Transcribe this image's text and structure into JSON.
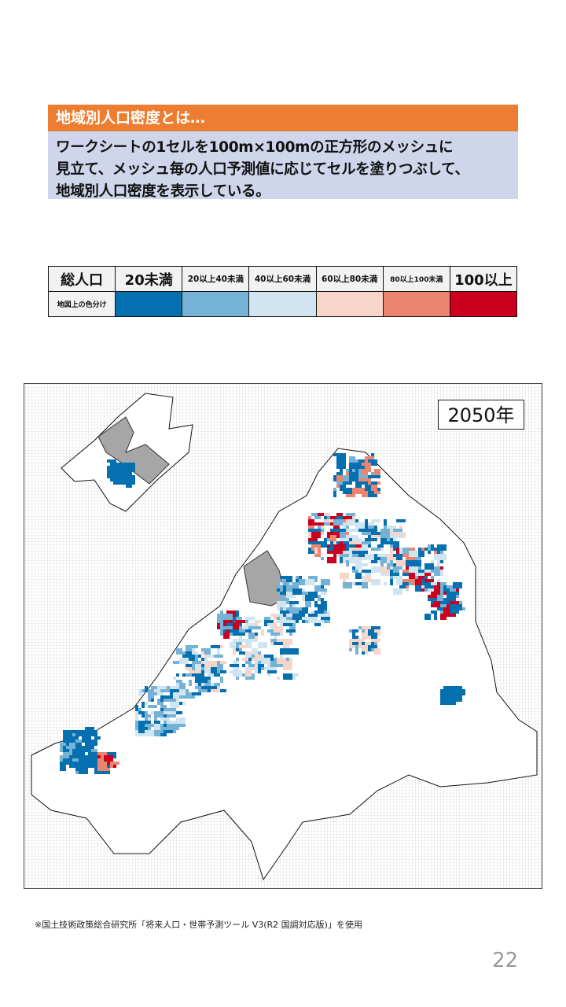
{
  "section": {
    "heading": "地域別人口密度とは…",
    "description": "ワークシートの1セルを100m×100mの正方形のメッシュに\n見立て、メッシュ毎の人口予測値に応じてセルを塗りつぶして、\n地域別人口密度を表示している。"
  },
  "legend": {
    "header_label": "総人口",
    "row_label": "地図上の色分け",
    "classes": [
      {
        "label": "20未満",
        "color": "#0570b0"
      },
      {
        "label": "20以上40未満",
        "color": "#74b3d6"
      },
      {
        "label": "40以上60未満",
        "color": "#d1e5f0"
      },
      {
        "label": "60以上80未満",
        "color": "#f7d5c8"
      },
      {
        "label": "80以上100未満",
        "color": "#ec8570"
      },
      {
        "label": "100以上",
        "color": "#cb0021"
      }
    ]
  },
  "map": {
    "year_label": "2050年",
    "no_data_color": "#a6a6a6"
  },
  "footer": {
    "source": "※国土技術政策総合研究所「将来人口・世帯予測ツール V3(R2 国調対応版)」を使用",
    "page_number": "22"
  }
}
